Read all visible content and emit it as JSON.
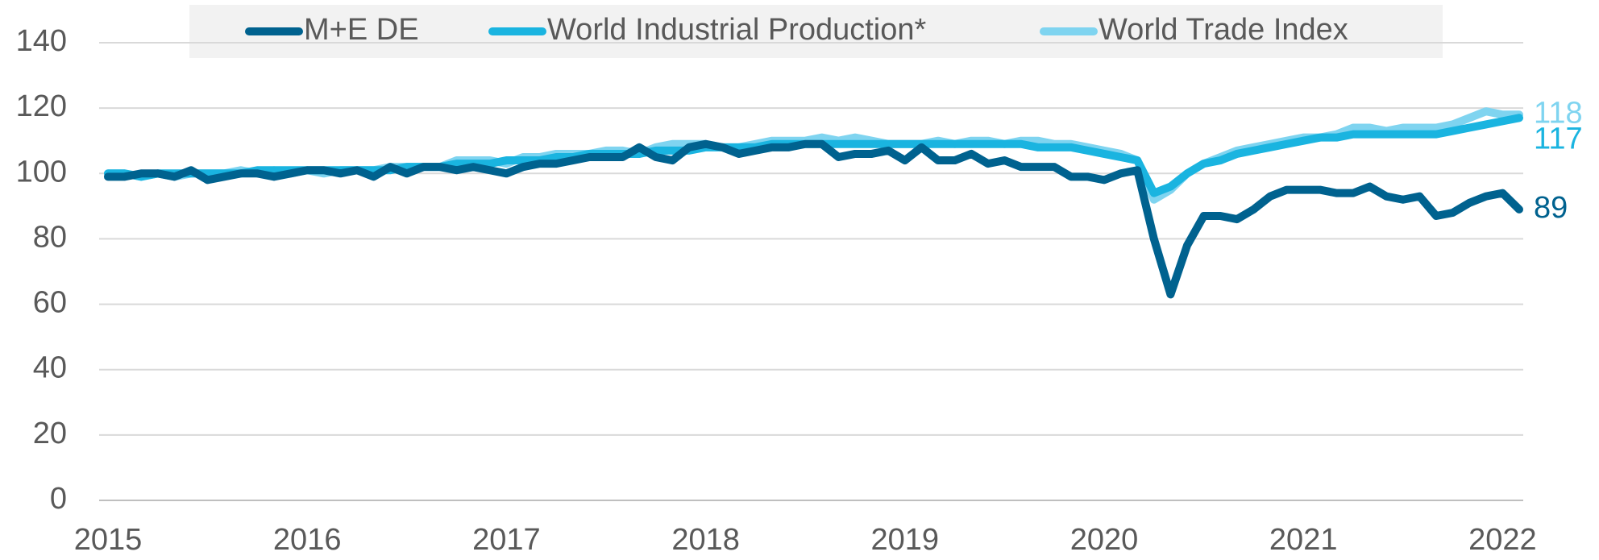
{
  "chart_data": {
    "type": "line",
    "categories": [
      "2015",
      null,
      null,
      null,
      null,
      null,
      null,
      null,
      null,
      null,
      null,
      null,
      "2016",
      null,
      null,
      null,
      null,
      null,
      null,
      null,
      null,
      null,
      null,
      null,
      "2017",
      null,
      null,
      null,
      null,
      null,
      null,
      null,
      null,
      null,
      null,
      null,
      "2018",
      null,
      null,
      null,
      null,
      null,
      null,
      null,
      null,
      null,
      null,
      null,
      "2019",
      null,
      null,
      null,
      null,
      null,
      null,
      null,
      null,
      null,
      null,
      null,
      "2020",
      null,
      null,
      null,
      null,
      null,
      null,
      null,
      null,
      null,
      null,
      null,
      "2021",
      null,
      null,
      null,
      null,
      null,
      null,
      null,
      null,
      null,
      null,
      null,
      "2022",
      null
    ],
    "series": [
      {
        "name": "M+E DE",
        "color": "#00628f",
        "end_label": "89",
        "values": [
          99,
          99,
          100,
          100,
          99,
          101,
          98,
          99,
          100,
          100,
          99,
          100,
          101,
          101,
          100,
          101,
          99,
          102,
          100,
          102,
          102,
          101,
          102,
          101,
          100,
          102,
          103,
          103,
          104,
          105,
          105,
          105,
          108,
          105,
          104,
          108,
          109,
          108,
          106,
          107,
          108,
          108,
          109,
          109,
          105,
          106,
          106,
          107,
          104,
          108,
          104,
          104,
          106,
          103,
          104,
          102,
          102,
          102,
          99,
          99,
          98,
          100,
          101,
          80,
          63,
          78,
          87,
          87,
          86,
          89,
          93,
          95,
          95,
          95,
          94,
          94,
          96,
          93,
          92,
          93,
          87,
          88,
          91,
          93,
          94,
          89
        ]
      },
      {
        "name": "World Industrial Production*",
        "color": "#1ab4e0",
        "end_label": "117",
        "values": [
          100,
          100,
          99,
          100,
          100,
          100,
          100,
          100,
          100,
          101,
          101,
          101,
          101,
          101,
          101,
          101,
          101,
          101,
          102,
          102,
          102,
          103,
          103,
          103,
          104,
          104,
          104,
          105,
          105,
          106,
          106,
          106,
          106,
          107,
          107,
          107,
          108,
          108,
          108,
          108,
          109,
          109,
          109,
          109,
          109,
          109,
          109,
          109,
          109,
          109,
          109,
          109,
          109,
          109,
          109,
          109,
          108,
          108,
          108,
          107,
          106,
          105,
          104,
          94,
          96,
          100,
          103,
          104,
          106,
          107,
          108,
          109,
          110,
          111,
          111,
          112,
          112,
          112,
          112,
          112,
          112,
          113,
          114,
          115,
          116,
          117
        ]
      },
      {
        "name": "World Trade Index",
        "color": "#7fd4f0",
        "end_label": "118",
        "values": [
          100,
          100,
          99,
          100,
          99,
          100,
          100,
          100,
          101,
          100,
          101,
          100,
          101,
          100,
          101,
          101,
          101,
          102,
          102,
          102,
          102,
          104,
          104,
          104,
          103,
          105,
          105,
          106,
          106,
          106,
          107,
          107,
          106,
          108,
          109,
          109,
          109,
          108,
          108,
          109,
          110,
          110,
          110,
          111,
          110,
          111,
          110,
          109,
          109,
          109,
          110,
          109,
          110,
          110,
          109,
          110,
          110,
          109,
          109,
          108,
          107,
          106,
          104,
          92,
          95,
          100,
          103,
          105,
          107,
          108,
          109,
          110,
          111,
          111,
          112,
          114,
          114,
          113,
          114,
          114,
          114,
          115,
          117,
          119,
          118,
          118
        ]
      }
    ],
    "ylim": [
      0,
      140
    ],
    "yticks": [
      0,
      20,
      40,
      60,
      80,
      100,
      120,
      140
    ],
    "grid": true,
    "legend": "top"
  }
}
